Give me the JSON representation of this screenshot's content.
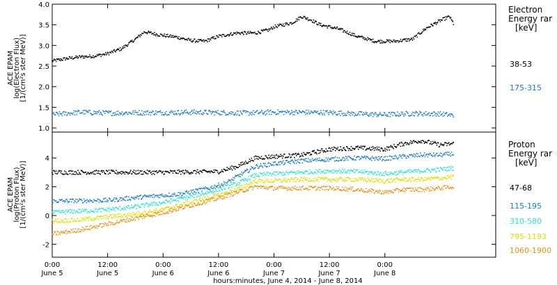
{
  "chart_data": [
    {
      "type": "scatter",
      "ylabel_lines": [
        "ACE EPAM",
        "log(Electron Flux)",
        "[1/(cm²s ster MeV)]"
      ],
      "ylim": [
        0.9,
        4.0
      ],
      "yticks": [
        "1.0",
        "1.5",
        "2.0",
        "2.5",
        "3.0",
        "3.5",
        "4.0"
      ],
      "yticks_values": [
        1.0,
        1.5,
        2.0,
        2.5,
        3.0,
        3.5,
        4.0
      ],
      "legend_title_lines": [
        "Electron",
        "Energy rar",
        "[keV]"
      ],
      "series": [
        {
          "label": "38-53",
          "color": "#000000",
          "points": [
            [
              0,
              2.62
            ],
            [
              3,
              2.68
            ],
            [
              6,
              2.72
            ],
            [
              9,
              2.74
            ],
            [
              12,
              2.8
            ],
            [
              15,
              2.92
            ],
            [
              18,
              3.15
            ],
            [
              20,
              3.33
            ],
            [
              23,
              3.26
            ],
            [
              27,
              3.2
            ],
            [
              30,
              3.12
            ],
            [
              33,
              3.1
            ],
            [
              36,
              3.22
            ],
            [
              40,
              3.3
            ],
            [
              44,
              3.3
            ],
            [
              47,
              3.38
            ],
            [
              48,
              3.45
            ],
            [
              52,
              3.55
            ],
            [
              54,
              3.7
            ],
            [
              56,
              3.62
            ],
            [
              58,
              3.5
            ],
            [
              62,
              3.4
            ],
            [
              66,
              3.22
            ],
            [
              70,
              3.1
            ],
            [
              74,
              3.1
            ],
            [
              78,
              3.15
            ],
            [
              81,
              3.42
            ],
            [
              84,
              3.6
            ],
            [
              86,
              3.7
            ],
            [
              87,
              3.5
            ]
          ]
        },
        {
          "label": "175-315",
          "color": "#1f78c8",
          "points": [
            [
              0,
              1.32
            ],
            [
              6,
              1.38
            ],
            [
              12,
              1.36
            ],
            [
              18,
              1.37
            ],
            [
              24,
              1.37
            ],
            [
              30,
              1.38
            ],
            [
              36,
              1.37
            ],
            [
              42,
              1.36
            ],
            [
              48,
              1.38
            ],
            [
              54,
              1.38
            ],
            [
              60,
              1.37
            ],
            [
              66,
              1.34
            ],
            [
              72,
              1.32
            ],
            [
              78,
              1.35
            ],
            [
              84,
              1.34
            ],
            [
              87,
              1.3
            ]
          ]
        }
      ]
    },
    {
      "type": "scatter",
      "ylabel_lines": [
        "ACE EPAM",
        "log(Proton Flux)",
        "[1/(cm²s ster MeV)]"
      ],
      "ylim": [
        -2.9,
        5.8
      ],
      "yticks": [
        "-2",
        "0",
        "2",
        "4"
      ],
      "yticks_values": [
        -2,
        0,
        2,
        4
      ],
      "legend_title_lines": [
        "Proton",
        "Energy rar",
        "[keV]"
      ],
      "series": [
        {
          "label": "47-68",
          "color": "#000000",
          "points": [
            [
              0,
              3.0
            ],
            [
              12,
              3.0
            ],
            [
              24,
              3.0
            ],
            [
              36,
              3.05
            ],
            [
              40,
              3.4
            ],
            [
              44,
              4.0
            ],
            [
              48,
              4.1
            ],
            [
              54,
              4.2
            ],
            [
              60,
              4.6
            ],
            [
              66,
              4.7
            ],
            [
              72,
              4.6
            ],
            [
              76,
              5.0
            ],
            [
              80,
              5.2
            ],
            [
              84,
              4.9
            ],
            [
              87,
              5.0
            ]
          ]
        },
        {
          "label": "115-195",
          "color": "#1f78c8",
          "points": [
            [
              0,
              1.0
            ],
            [
              12,
              1.05
            ],
            [
              20,
              1.3
            ],
            [
              28,
              1.5
            ],
            [
              34,
              1.9
            ],
            [
              38,
              2.3
            ],
            [
              40,
              2.7
            ],
            [
              44,
              3.4
            ],
            [
              48,
              3.6
            ],
            [
              54,
              3.8
            ],
            [
              60,
              3.9
            ],
            [
              66,
              4.0
            ],
            [
              72,
              3.95
            ],
            [
              76,
              4.1
            ],
            [
              80,
              4.2
            ],
            [
              84,
              4.2
            ],
            [
              87,
              4.3
            ]
          ]
        },
        {
          "label": "310-580",
          "color": "#2ee0d0",
          "points": [
            [
              0,
              0.2
            ],
            [
              6,
              0.3
            ],
            [
              12,
              0.4
            ],
            [
              18,
              0.6
            ],
            [
              24,
              0.9
            ],
            [
              30,
              1.3
            ],
            [
              36,
              1.8
            ],
            [
              40,
              2.2
            ],
            [
              44,
              2.8
            ],
            [
              48,
              2.9
            ],
            [
              54,
              3.0
            ],
            [
              60,
              3.1
            ],
            [
              66,
              3.05
            ],
            [
              72,
              2.9
            ],
            [
              76,
              3.0
            ],
            [
              80,
              3.1
            ],
            [
              84,
              3.2
            ],
            [
              87,
              3.3
            ]
          ]
        },
        {
          "label": "795-1193",
          "color": "#dddd00",
          "points": [
            [
              0,
              -0.4
            ],
            [
              6,
              -0.3
            ],
            [
              12,
              -0.1
            ],
            [
              18,
              0.1
            ],
            [
              24,
              0.4
            ],
            [
              30,
              0.9
            ],
            [
              36,
              1.4
            ],
            [
              40,
              1.8
            ],
            [
              44,
              2.4
            ],
            [
              48,
              2.4
            ],
            [
              54,
              2.5
            ],
            [
              60,
              2.5
            ],
            [
              66,
              2.5
            ],
            [
              72,
              2.4
            ],
            [
              76,
              2.5
            ],
            [
              80,
              2.5
            ],
            [
              84,
              2.6
            ],
            [
              87,
              2.7
            ]
          ]
        },
        {
          "label": "1060-1900",
          "color": "#e8901a",
          "points": [
            [
              0,
              -1.3
            ],
            [
              6,
              -1.0
            ],
            [
              12,
              -0.6
            ],
            [
              18,
              -0.2
            ],
            [
              24,
              0.2
            ],
            [
              30,
              0.7
            ],
            [
              36,
              1.2
            ],
            [
              40,
              1.6
            ],
            [
              44,
              2.0
            ],
            [
              48,
              1.9
            ],
            [
              54,
              1.9
            ],
            [
              60,
              1.9
            ],
            [
              66,
              1.8
            ],
            [
              72,
              1.6
            ],
            [
              76,
              1.8
            ],
            [
              80,
              1.8
            ],
            [
              84,
              1.9
            ],
            [
              87,
              2.0
            ]
          ]
        }
      ]
    }
  ],
  "x_axis": {
    "xlim": [
      0,
      96
    ],
    "ticks": [
      {
        "h": 0,
        "time": "0:00",
        "date": "June 5"
      },
      {
        "h": 12,
        "time": "12:00",
        "date": "June 5"
      },
      {
        "h": 24,
        "time": "0:00",
        "date": "June 6"
      },
      {
        "h": 36,
        "time": "12:00",
        "date": "June 6"
      },
      {
        "h": 48,
        "time": "0:00",
        "date": "June 7"
      },
      {
        "h": 60,
        "time": "12:00",
        "date": "June 7"
      },
      {
        "h": 72,
        "time": "0:00",
        "date": "June 8"
      }
    ],
    "title": "hours:minutes, June  4, 2014 - June  8, 2014"
  }
}
